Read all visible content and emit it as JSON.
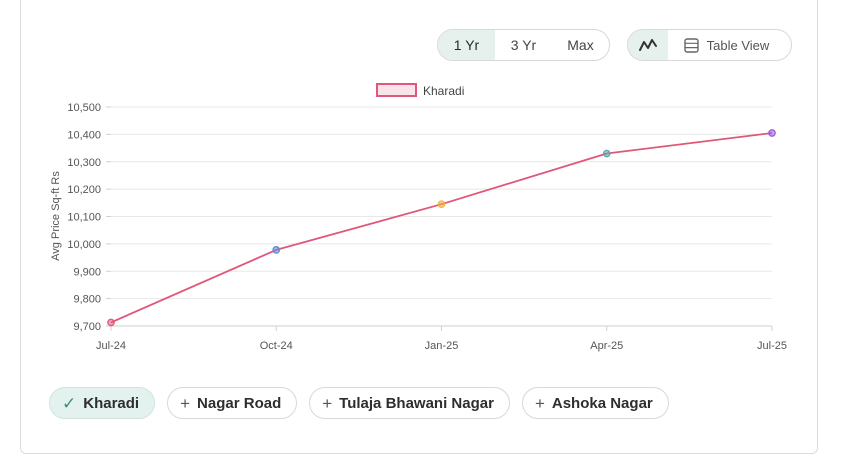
{
  "range_toggle": {
    "options": [
      "1 Yr",
      "3 Yr",
      "Max"
    ],
    "active": "1 Yr"
  },
  "view_toggle": {
    "table_label": "Table View"
  },
  "chart_data": {
    "type": "line",
    "x": [
      "Jul-24",
      "Oct-24",
      "Jan-25",
      "Apr-25",
      "Jul-25"
    ],
    "series": [
      {
        "name": "Kharadi",
        "values": [
          9713,
          9978,
          10145,
          10330,
          10405
        ],
        "color": "#e0577a",
        "point_colors": [
          "#e0577a",
          "#5b8ad6",
          "#f2b13a",
          "#5aa6ab",
          "#9b5de0"
        ]
      }
    ],
    "ylabel": "Avg Price Sq-ft Rs",
    "ylim": [
      9700,
      10500
    ],
    "yticks": [
      "9,700",
      "9,800",
      "9,900",
      "10,000",
      "10,100",
      "10,200",
      "10,300",
      "10,400",
      "10,500"
    ],
    "legend": "top-center",
    "grid": true
  },
  "tags": [
    {
      "label": "Kharadi",
      "icon": "check-icon",
      "selected": true
    },
    {
      "label": "Nagar Road",
      "icon": "plus-icon",
      "selected": false
    },
    {
      "label": "Tulaja Bhawani Nagar",
      "icon": "plus-icon",
      "selected": false
    },
    {
      "label": "Ashoka Nagar",
      "icon": "plus-icon",
      "selected": false
    }
  ]
}
